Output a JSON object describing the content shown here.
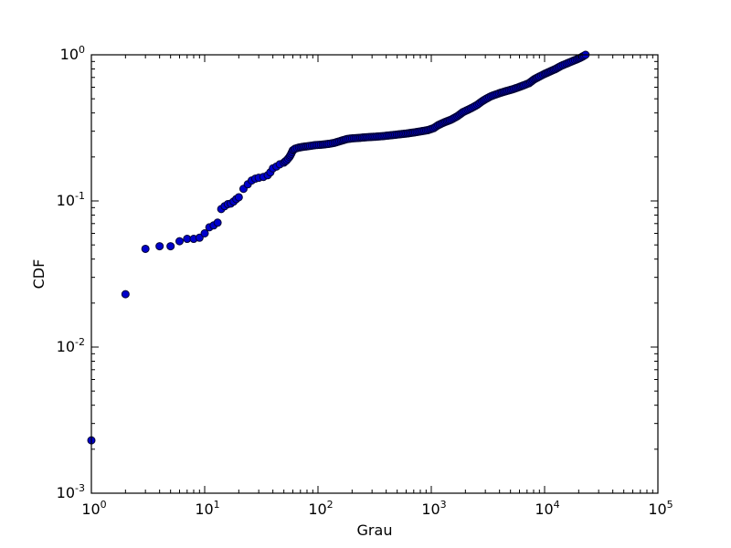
{
  "chart_data": {
    "type": "scatter",
    "xlabel": "Grau",
    "ylabel": "CDF",
    "x_scale": "log",
    "y_scale": "log",
    "xlim": [
      1,
      100000
    ],
    "ylim": [
      0.001,
      1
    ],
    "grid": false,
    "x_tick_labels": [
      {
        "base": "10",
        "exp": "0"
      },
      {
        "base": "10",
        "exp": "1"
      },
      {
        "base": "10",
        "exp": "2"
      },
      {
        "base": "10",
        "exp": "3"
      },
      {
        "base": "10",
        "exp": "4"
      },
      {
        "base": "10",
        "exp": "5"
      }
    ],
    "y_tick_labels": [
      {
        "base": "10",
        "exp": "-3"
      },
      {
        "base": "10",
        "exp": "-2"
      },
      {
        "base": "10",
        "exp": "-1"
      },
      {
        "base": "10",
        "exp": "0"
      }
    ],
    "marker_color": "#0000cc",
    "marker_edge_color": "#000033",
    "points": [
      [
        1,
        0.0023
      ],
      [
        2,
        0.023
      ],
      [
        3,
        0.047
      ],
      [
        4,
        0.049
      ],
      [
        5,
        0.049
      ],
      [
        6,
        0.053
      ],
      [
        7,
        0.055
      ],
      [
        8,
        0.055
      ],
      [
        9,
        0.056
      ],
      [
        10,
        0.06
      ],
      [
        11,
        0.066
      ],
      [
        12,
        0.068
      ],
      [
        13,
        0.071
      ],
      [
        14,
        0.088
      ],
      [
        15,
        0.092
      ],
      [
        16,
        0.095
      ],
      [
        17,
        0.096
      ],
      [
        18,
        0.099
      ],
      [
        19,
        0.103
      ],
      [
        20,
        0.106
      ],
      [
        22,
        0.121
      ],
      [
        24,
        0.13
      ],
      [
        26,
        0.138
      ],
      [
        28,
        0.142
      ],
      [
        30,
        0.144
      ],
      [
        33,
        0.146
      ],
      [
        36,
        0.15
      ],
      [
        38,
        0.157
      ],
      [
        40,
        0.167
      ],
      [
        43,
        0.172
      ],
      [
        46,
        0.178
      ],
      [
        50,
        0.183
      ],
      [
        53,
        0.19
      ],
      [
        56,
        0.2
      ],
      [
        58,
        0.21
      ],
      [
        60,
        0.222
      ],
      [
        63,
        0.228
      ],
      [
        68,
        0.232
      ],
      [
        75,
        0.235
      ],
      [
        85,
        0.238
      ],
      [
        95,
        0.241
      ],
      [
        110,
        0.243
      ],
      [
        125,
        0.246
      ],
      [
        140,
        0.25
      ],
      [
        160,
        0.258
      ],
      [
        180,
        0.265
      ],
      [
        200,
        0.268
      ],
      [
        230,
        0.27
      ],
      [
        270,
        0.273
      ],
      [
        320,
        0.275
      ],
      [
        380,
        0.278
      ],
      [
        450,
        0.282
      ],
      [
        530,
        0.286
      ],
      [
        620,
        0.29
      ],
      [
        720,
        0.295
      ],
      [
        820,
        0.3
      ],
      [
        930,
        0.305
      ],
      [
        1050,
        0.315
      ],
      [
        1150,
        0.33
      ],
      [
        1300,
        0.345
      ],
      [
        1500,
        0.36
      ],
      [
        1700,
        0.38
      ],
      [
        1900,
        0.405
      ],
      [
        2100,
        0.42
      ],
      [
        2300,
        0.435
      ],
      [
        2550,
        0.455
      ],
      [
        2800,
        0.48
      ],
      [
        3050,
        0.5
      ],
      [
        3350,
        0.52
      ],
      [
        3700,
        0.535
      ],
      [
        4100,
        0.55
      ],
      [
        4600,
        0.565
      ],
      [
        5200,
        0.58
      ],
      [
        5900,
        0.6
      ],
      [
        6600,
        0.62
      ],
      [
        7300,
        0.64
      ],
      [
        8100,
        0.68
      ],
      [
        9000,
        0.71
      ],
      [
        10000,
        0.74
      ],
      [
        11200,
        0.77
      ],
      [
        12500,
        0.8
      ],
      [
        14000,
        0.84
      ],
      [
        15600,
        0.87
      ],
      [
        17300,
        0.9
      ],
      [
        19200,
        0.93
      ],
      [
        21000,
        0.96
      ],
      [
        23000,
        1.0
      ]
    ]
  }
}
